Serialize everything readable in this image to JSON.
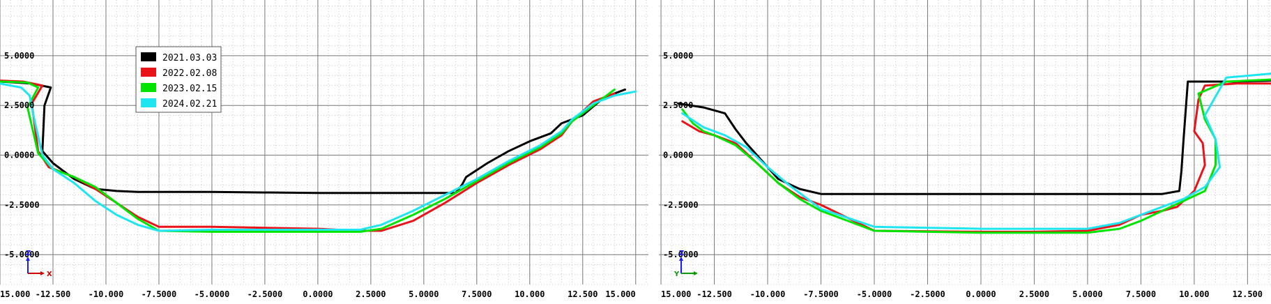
{
  "colors": {
    "black": "#000000",
    "red": "#e8141a",
    "green": "#00e400",
    "cyan": "#1fe5f0",
    "grid_major": "#7a7a7a",
    "grid_minor": "#c8c8c8",
    "axis_x": "#d00000",
    "axis_y_left": "#1a1aff",
    "axis_y_right": "#0a9a0a"
  },
  "legend": [
    {
      "label": "2021.03.03",
      "color": "#000000"
    },
    {
      "label": "2022.02.08",
      "color": "#e8141a"
    },
    {
      "label": "2023.02.15",
      "color": "#00e400"
    },
    {
      "label": "2024.02.21",
      "color": "#1fe5f0"
    }
  ],
  "chart_data": [
    {
      "type": "line",
      "panel": "left",
      "xlim": [
        15.0,
        -15.6
      ],
      "ylim": [
        -6.5,
        7.8
      ],
      "x_ticks": [
        {
          "v": 15.0,
          "label": "15.000"
        },
        {
          "v": 12.5,
          "label": "-12.500"
        },
        {
          "v": 10.0,
          "label": "-10.000"
        },
        {
          "v": 7.5,
          "label": "-7.5000"
        },
        {
          "v": 5.0,
          "label": "-5.0000"
        },
        {
          "v": 2.5,
          "label": "-2.5000"
        },
        {
          "v": 0.0,
          "label": "0.0000"
        },
        {
          "v": -2.5,
          "label": "2.5000"
        },
        {
          "v": -5.0,
          "label": "5.0000"
        },
        {
          "v": -7.5,
          "label": "7.5000"
        },
        {
          "v": -10.0,
          "label": "10.000"
        },
        {
          "v": -12.5,
          "label": "12.500"
        },
        {
          "v": -15.0,
          "label": "15.000"
        }
      ],
      "y_ticks": [
        {
          "v": 5.0,
          "label": "5.0000"
        },
        {
          "v": 2.5,
          "label": "2.5000"
        },
        {
          "v": 0.0,
          "label": "0.0000"
        },
        {
          "v": -2.5,
          "label": "-2.5000"
        },
        {
          "v": -5.0,
          "label": "-5.0000"
        }
      ],
      "axis_glyph": {
        "x_label": "X",
        "y_label": "Z"
      },
      "series": [
        {
          "name": "2021.03.03",
          "color": "#000000",
          "width": 3,
          "x": [
            15.0,
            13.5,
            12.6,
            12.9,
            13.0,
            12.5,
            12.0,
            11.5,
            10.5,
            9.5,
            8.5,
            7.5,
            5.0,
            0.0,
            -5.0,
            -6.5,
            -6.8,
            -7.0,
            -8.0,
            -9.0,
            -10.0,
            -11.0,
            -11.5,
            -12.5,
            -13.5,
            -14.5
          ],
          "y": [
            3.7,
            3.6,
            3.4,
            2.5,
            0.2,
            -0.4,
            -0.8,
            -1.2,
            -1.7,
            -1.8,
            -1.85,
            -1.85,
            -1.85,
            -1.9,
            -1.9,
            -1.9,
            -1.5,
            -1.1,
            -0.4,
            0.2,
            0.7,
            1.1,
            1.6,
            2.0,
            2.9,
            3.3
          ]
        },
        {
          "name": "2022.02.08",
          "color": "#e8141a",
          "width": 3,
          "x": [
            15.0,
            13.9,
            13.0,
            13.5,
            13.2,
            12.7,
            11.5,
            10.5,
            9.5,
            8.5,
            7.5,
            5.0,
            0.0,
            -2.0,
            -3.0,
            -4.5,
            -6.0,
            -7.5,
            -9.0,
            -10.5,
            -11.5,
            -12.0,
            -13.0,
            -14.0
          ],
          "y": [
            3.75,
            3.7,
            3.5,
            2.6,
            0.2,
            -0.6,
            -1.1,
            -1.7,
            -2.4,
            -3.1,
            -3.6,
            -3.6,
            -3.7,
            -3.8,
            -3.8,
            -3.3,
            -2.4,
            -1.4,
            -0.5,
            0.3,
            1.0,
            1.7,
            2.7,
            3.1
          ]
        },
        {
          "name": "2023.02.15",
          "color": "#00e400",
          "width": 3,
          "x": [
            15.0,
            13.7,
            13.2,
            13.7,
            13.2,
            12.5,
            11.5,
            10.5,
            9.5,
            8.5,
            7.5,
            5.0,
            0.0,
            -2.0,
            -3.0,
            -4.5,
            -6.0,
            -7.5,
            -9.0,
            -10.5,
            -11.5,
            -12.0,
            -13.0,
            -14.0
          ],
          "y": [
            3.7,
            3.65,
            3.4,
            2.4,
            0.1,
            -0.7,
            -1.1,
            -1.6,
            -2.4,
            -3.2,
            -3.8,
            -3.85,
            -3.85,
            -3.85,
            -3.7,
            -3.0,
            -2.2,
            -1.3,
            -0.4,
            0.4,
            1.1,
            1.7,
            2.5,
            3.3
          ]
        },
        {
          "name": "2024.02.21",
          "color": "#1fe5f0",
          "width": 3,
          "x": [
            15.0,
            14.0,
            13.6,
            13.4,
            13.0,
            12.5,
            11.5,
            10.5,
            9.5,
            8.5,
            7.5,
            5.0,
            0.0,
            -2.0,
            -3.0,
            -4.5,
            -6.0,
            -7.5,
            -9.0,
            -10.5,
            -11.5,
            -12.0,
            -13.0,
            -14.0,
            -15.0
          ],
          "y": [
            3.6,
            3.4,
            3.0,
            1.9,
            0.0,
            -0.7,
            -1.4,
            -2.3,
            -3.0,
            -3.5,
            -3.8,
            -3.75,
            -3.75,
            -3.75,
            -3.5,
            -2.8,
            -2.0,
            -1.2,
            -0.3,
            0.5,
            1.2,
            1.8,
            2.6,
            3.0,
            3.2
          ]
        }
      ]
    },
    {
      "type": "line",
      "panel": "right",
      "xlim": [
        15.1,
        -13.6
      ],
      "ylim": [
        -6.5,
        7.8
      ],
      "x_ticks": [
        {
          "v": 15.0,
          "label": "15.000"
        },
        {
          "v": 12.5,
          "label": "-12.500"
        },
        {
          "v": 10.0,
          "label": "-10.000"
        },
        {
          "v": 7.5,
          "label": "-7.5000"
        },
        {
          "v": 5.0,
          "label": "-5.0000"
        },
        {
          "v": 2.5,
          "label": "-2.5000"
        },
        {
          "v": 0.0,
          "label": "0.0000"
        },
        {
          "v": -2.5,
          "label": "2.5000"
        },
        {
          "v": -5.0,
          "label": "5.0000"
        },
        {
          "v": -7.5,
          "label": "7.5000"
        },
        {
          "v": -10.0,
          "label": "10.000"
        },
        {
          "v": -12.5,
          "label": "12.500"
        }
      ],
      "y_ticks": [
        {
          "v": 5.0,
          "label": "5.0000"
        },
        {
          "v": 2.5,
          "label": "2.5000"
        },
        {
          "v": 0.0,
          "label": "0.0000"
        },
        {
          "v": -2.5,
          "label": "-2.5000"
        },
        {
          "v": -5.0,
          "label": "-5.0000"
        }
      ],
      "axis_glyph": {
        "x_label": "Y",
        "y_label": "Z"
      },
      "series": [
        {
          "name": "2021.03.03",
          "color": "#000000",
          "width": 3,
          "x": [
            14.2,
            13.0,
            12.0,
            11.5,
            11.0,
            10.5,
            10.0,
            9.5,
            8.5,
            7.5,
            5.0,
            0.0,
            -5.0,
            -8.5,
            -9.3,
            -9.4,
            -9.5,
            -9.7,
            -10.5,
            -12.0,
            -13.6
          ],
          "y": [
            2.6,
            2.4,
            2.1,
            1.3,
            0.6,
            0.0,
            -0.6,
            -1.2,
            -1.7,
            -1.95,
            -1.95,
            -1.95,
            -1.95,
            -1.95,
            -1.8,
            -0.8,
            0.8,
            3.7,
            3.7,
            3.7,
            3.75
          ]
        },
        {
          "name": "2022.02.08",
          "color": "#e8141a",
          "width": 3,
          "x": [
            14.0,
            13.2,
            12.5,
            11.5,
            10.5,
            9.5,
            8.5,
            7.5,
            5.0,
            0.0,
            -2.5,
            -5.0,
            -6.5,
            -7.5,
            -8.5,
            -9.2,
            -10.0,
            -10.5,
            -10.4,
            -10.0,
            -10.2,
            -10.5,
            -12.0,
            -13.6
          ],
          "y": [
            1.7,
            1.2,
            1.0,
            0.6,
            -0.4,
            -1.4,
            -2.1,
            -2.5,
            -3.8,
            -3.85,
            -3.85,
            -3.8,
            -3.5,
            -3.0,
            -2.8,
            -2.6,
            -1.8,
            -0.5,
            0.6,
            1.2,
            2.8,
            3.5,
            3.6,
            3.6
          ]
        },
        {
          "name": "2023.02.15",
          "color": "#00e400",
          "width": 3,
          "x": [
            14.0,
            13.5,
            13.0,
            12.5,
            11.5,
            10.5,
            9.5,
            8.5,
            7.5,
            5.0,
            0.0,
            -2.5,
            -5.0,
            -6.5,
            -7.5,
            -8.5,
            -9.5,
            -10.5,
            -11.0,
            -11.0,
            -10.5,
            -10.2,
            -11.5,
            -13.6
          ],
          "y": [
            2.3,
            1.6,
            1.2,
            1.0,
            0.5,
            -0.4,
            -1.4,
            -2.2,
            -2.8,
            -3.8,
            -3.9,
            -3.9,
            -3.9,
            -3.7,
            -3.3,
            -2.8,
            -2.3,
            -1.8,
            -0.5,
            0.8,
            1.8,
            3.1,
            3.7,
            3.8
          ]
        },
        {
          "name": "2024.02.21",
          "color": "#1fe5f0",
          "width": 3,
          "x": [
            14.0,
            13.0,
            12.0,
            11.0,
            10.0,
            9.0,
            8.0,
            7.5,
            5.0,
            0.0,
            -2.5,
            -5.0,
            -6.5,
            -7.5,
            -8.5,
            -9.5,
            -10.5,
            -11.2,
            -11.0,
            -10.5,
            -11.5,
            -13.6
          ],
          "y": [
            2.1,
            1.4,
            1.0,
            0.4,
            -0.6,
            -1.5,
            -2.3,
            -2.7,
            -3.6,
            -3.7,
            -3.7,
            -3.7,
            -3.4,
            -3.0,
            -2.6,
            -2.2,
            -1.6,
            -0.6,
            0.8,
            2.0,
            3.9,
            4.1
          ]
        }
      ]
    }
  ]
}
